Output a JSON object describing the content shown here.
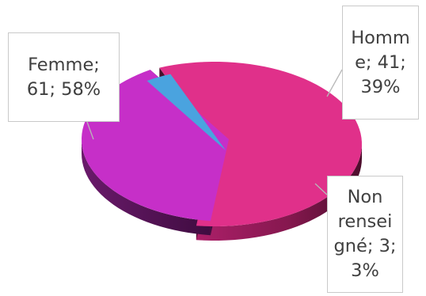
{
  "chart_data": {
    "type": "pie",
    "style": "3d-exploded",
    "slices": [
      {
        "label": "Femme",
        "value": 61,
        "percent": "58%",
        "color": "#e0308a"
      },
      {
        "label": "Homme",
        "value": 41,
        "percent": "39%",
        "color": "#c62fc8"
      },
      {
        "label": "Non renseigné",
        "value": 3,
        "percent": "3%",
        "color": "#4aa3df"
      }
    ],
    "callouts": {
      "femme": [
        "Femme;",
        "61; 58%"
      ],
      "homme": [
        "Homm",
        "e; 41;",
        "39%"
      ],
      "non_renseigne": [
        "Non",
        "rensei",
        "gné; 3;",
        "3%"
      ]
    },
    "title": "",
    "legend": "none"
  }
}
